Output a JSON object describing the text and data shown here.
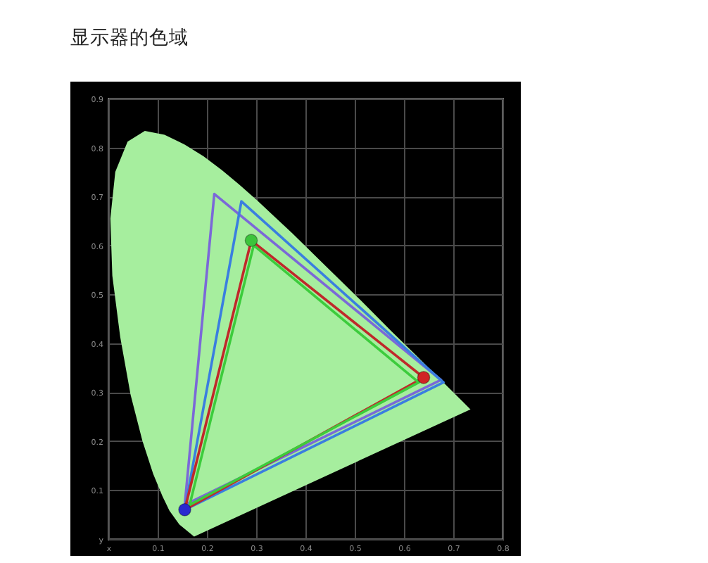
{
  "chart_data": {
    "type": "line",
    "title": "显示器的色域",
    "xlim": [
      0,
      0.8
    ],
    "ylim": [
      0,
      0.9
    ],
    "xticks": [
      {
        "value": 0,
        "label": "x"
      },
      0.1,
      0.2,
      0.3,
      0.4,
      0.5,
      0.6,
      0.7,
      0.8
    ],
    "yticks": [
      {
        "value": 0,
        "label": "y"
      },
      0.1,
      0.2,
      0.3,
      0.4,
      0.5,
      0.6,
      0.7,
      0.8,
      0.9
    ],
    "grid": true,
    "series": [
      {
        "type": "area",
        "color": "#a6ee9e",
        "x": [
          0.174,
          0.144,
          0.124,
          0.11,
          0.091,
          0.069,
          0.045,
          0.024,
          0.008,
          0.004,
          0.014,
          0.039,
          0.074,
          0.114,
          0.155,
          0.193,
          0.23,
          0.266,
          0.302,
          0.337,
          0.373,
          0.444,
          0.513,
          0.575,
          0.627,
          0.666,
          0.692,
          0.719,
          0.735
        ],
        "values": [
          0.005,
          0.03,
          0.058,
          0.087,
          0.133,
          0.201,
          0.295,
          0.413,
          0.538,
          0.655,
          0.75,
          0.812,
          0.834,
          0.826,
          0.806,
          0.782,
          0.754,
          0.724,
          0.692,
          0.659,
          0.625,
          0.555,
          0.487,
          0.424,
          0.373,
          0.334,
          0.308,
          0.281,
          0.265
        ]
      },
      {
        "color": "#7b68d8",
        "x": [
          0.675,
          0.215,
          0.155
        ],
        "values": [
          0.325,
          0.705,
          0.07
        ]
      },
      {
        "color": "#7b68d8",
        "x": [
          0.155,
          0.675
        ],
        "values": [
          0.07,
          0.325
        ]
      },
      {
        "color": "#3a7ee0",
        "x": [
          0.68,
          0.27,
          0.155
        ],
        "values": [
          0.32,
          0.69,
          0.06
        ]
      },
      {
        "color": "#3a7ee0",
        "x": [
          0.155,
          0.68
        ],
        "values": [
          0.06,
          0.32
        ]
      },
      {
        "color": "#c0282a",
        "x": [
          0.64,
          0.29,
          0.155
        ],
        "values": [
          0.33,
          0.61,
          0.06
        ]
      },
      {
        "color": "#c0282a",
        "x": [
          0.155,
          0.64
        ],
        "values": [
          0.06,
          0.33
        ]
      },
      {
        "color": "#3ccc3c",
        "x": [
          0.63,
          0.295,
          0.165
        ],
        "values": [
          0.32,
          0.6,
          0.07
        ]
      },
      {
        "color": "#3ccc3c",
        "x": [
          0.165,
          0.63
        ],
        "values": [
          0.07,
          0.32
        ]
      },
      {
        "type": "scatter",
        "marker": "circle",
        "colors": [
          "#d02424",
          "#3cc43c",
          "#2a2ad0"
        ],
        "x": [
          0.64,
          0.29,
          0.155
        ],
        "values": [
          0.33,
          0.61,
          0.06
        ]
      }
    ]
  }
}
